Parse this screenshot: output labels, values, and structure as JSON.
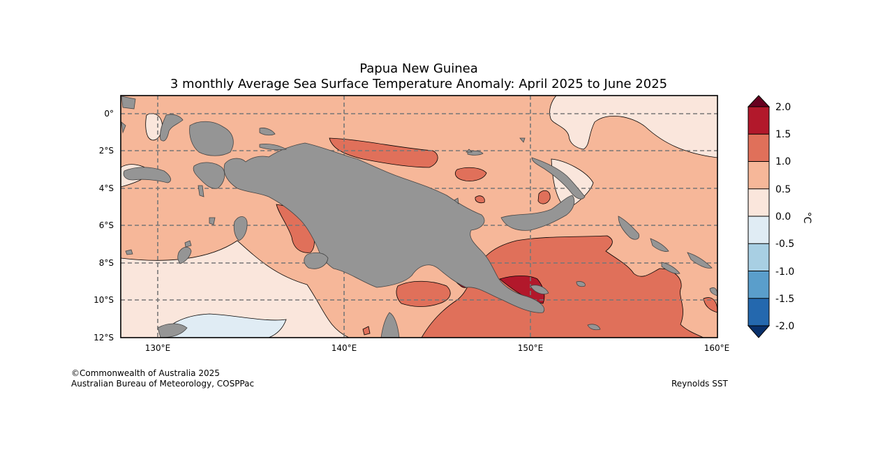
{
  "title": {
    "line1": "Papua New Guinea",
    "line2": "3 monthly Average Sea Surface Temperature Anomaly: April 2025 to June 2025"
  },
  "map": {
    "lat_ticks": [
      "0°",
      "2°S",
      "4°S",
      "6°S",
      "8°S",
      "10°S",
      "12°S"
    ],
    "lon_ticks": [
      "130°E",
      "140°E",
      "150°E",
      "160°E"
    ],
    "land_color": "#959595",
    "grid_color": "#777777"
  },
  "colorbar": {
    "unit": "°C",
    "labels": [
      "2.0",
      "1.5",
      "1.0",
      "0.5",
      "0.0",
      "-0.5",
      "-1.0",
      "-1.5",
      "-2.0"
    ],
    "colors": {
      "over": "#67001f",
      "c_1_5_2_0": "#b2182b",
      "c_1_0_1_5": "#e0705a",
      "c_0_5_1_0": "#f6b799",
      "c_0_0_0_5": "#fae6dc",
      "c_m0_5_0_0": "#e0ecf4",
      "c_m1_0_m0_5": "#a8cfe3",
      "c_m1_5_m1_0": "#5a9ecb",
      "c_m2_0_m1_5": "#2468ae",
      "under": "#08306b"
    }
  },
  "footer": {
    "copyright": "©Commonwealth of Australia 2025",
    "agency": "Australian Bureau of Meteorology, COSPPac",
    "source": "Reynolds SST"
  }
}
